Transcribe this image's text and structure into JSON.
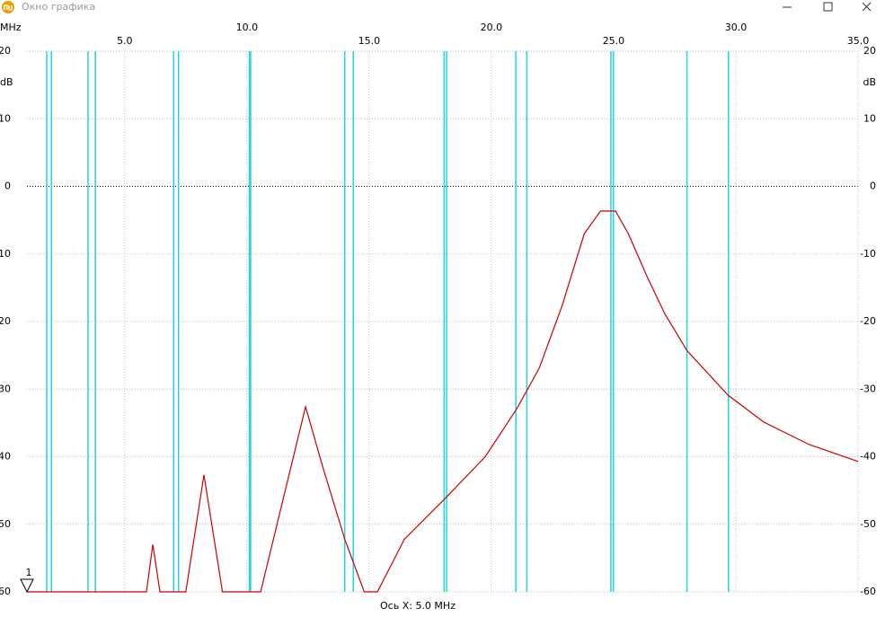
{
  "window": {
    "title": "Окно графика"
  },
  "chart_data": {
    "type": "line",
    "x_unit": "MHz",
    "y_unit": "dB",
    "footer": "Ось X: 5.0 MHz",
    "marker_label": "1",
    "xlim": [
      1,
      35
    ],
    "ylim": [
      -60,
      20
    ],
    "xticks": [
      {
        "value": 5,
        "label": "5.0"
      },
      {
        "value": 10,
        "label": "10.0"
      },
      {
        "value": 15,
        "label": "15.0"
      },
      {
        "value": 20,
        "label": "20.0"
      },
      {
        "value": 25,
        "label": "25.0"
      },
      {
        "value": 30,
        "label": "30.0"
      },
      {
        "value": 35,
        "label": "35.0"
      }
    ],
    "yticks": [
      20,
      10,
      0,
      -10,
      -20,
      -30,
      -40,
      -50,
      -60
    ],
    "grid": true,
    "band_color": "#22d3e6",
    "bands": [
      1.81,
      2.0,
      3.5,
      3.8,
      7.0,
      7.2,
      10.1,
      10.15,
      14.0,
      14.35,
      18.068,
      18.168,
      21.0,
      21.45,
      24.89,
      24.99,
      28.0,
      29.7
    ],
    "color": "#cc0000",
    "x": [
      1.0,
      5.89,
      6.15,
      6.44,
      7.5,
      8.24,
      9.0,
      10.56,
      12.4,
      13.1,
      14.0,
      14.8,
      15.34,
      16.44,
      18.1,
      19.75,
      21.04,
      21.96,
      22.9,
      23.8,
      24.46,
      25.08,
      25.6,
      26.4,
      27.1,
      28.0,
      29.68,
      31.15,
      33.0,
      35.0
    ],
    "values": [
      -60,
      -60,
      -53,
      -60,
      -60,
      -42.7,
      -60,
      -60,
      -32.6,
      -41.5,
      -52.2,
      -60,
      -60,
      -52.2,
      -46.2,
      -40,
      -32.9,
      -26.9,
      -17.6,
      -7.0,
      -3.65,
      -3.65,
      -7,
      -13.6,
      -18.9,
      -24.3,
      -30.9,
      -34.9,
      -38.2,
      -40.7
    ]
  }
}
